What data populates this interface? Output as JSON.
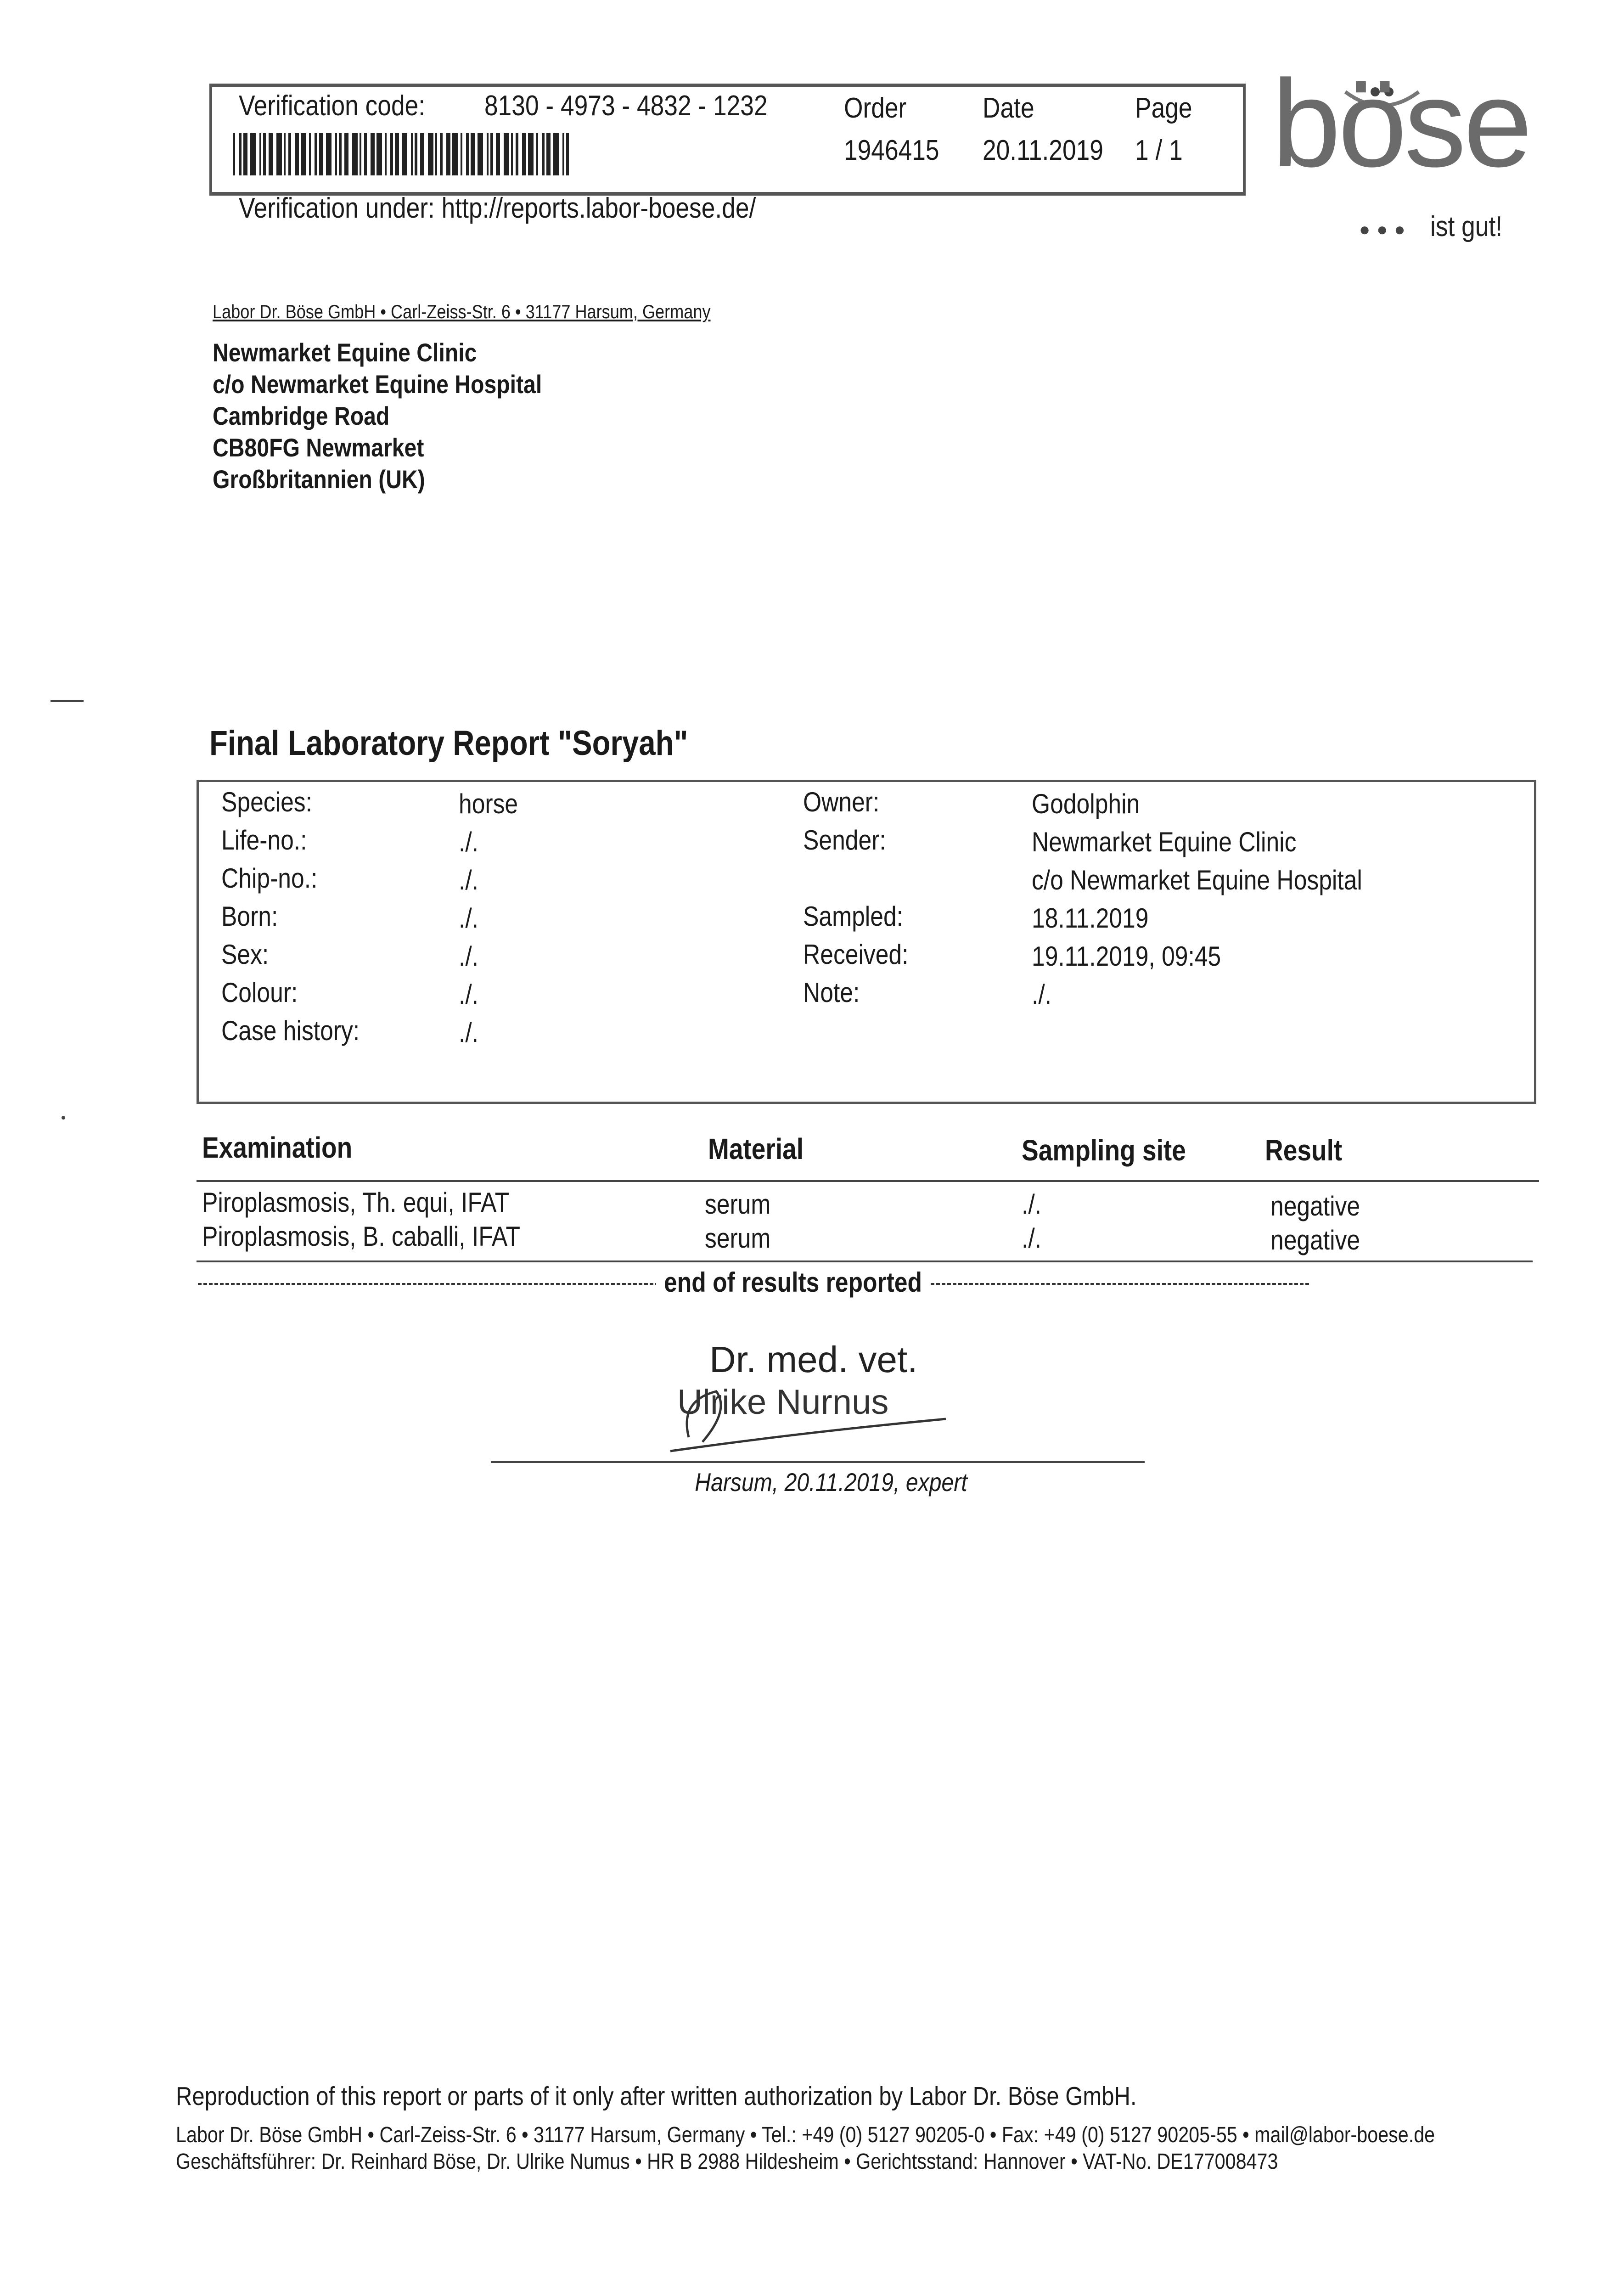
{
  "header": {
    "verification_label": "Verification code:",
    "verification_code": "8130 - 4973 - 4832 - 1232",
    "order_label": "Order",
    "order_value": "1946415",
    "date_label": "Date",
    "date_value": "20.11.2019",
    "page_label": "Page",
    "page_value": "1 / 1",
    "verification_url": "Verification under: http://reports.labor-boese.de/"
  },
  "logo": {
    "text": "böse",
    "tagline": "ist gut!",
    "color": "#6b6b6b"
  },
  "sender_line": "Labor Dr. Böse GmbH • Carl-Zeiss-Str. 6 • 31177 Harsum, Germany",
  "recipient": [
    "Newmarket Equine Clinic",
    "c/o Newmarket Equine Hospital",
    "Cambridge Road",
    "CB80FG Newmarket",
    "Großbritannien (UK)"
  ],
  "title": "Final Laboratory Report \"Soryah\"",
  "patient_left": [
    {
      "label": "Species:",
      "value": "horse"
    },
    {
      "label": "Life-no.:",
      "value": "./."
    },
    {
      "label": "Chip-no.:",
      "value": "./."
    },
    {
      "label": "Born:",
      "value": "./."
    },
    {
      "label": "Sex:",
      "value": "./."
    },
    {
      "label": "Colour:",
      "value": "./."
    },
    {
      "label": "Case history:",
      "value": "./."
    }
  ],
  "patient_right": [
    {
      "label": "Owner:",
      "value": "Godolphin"
    },
    {
      "label": "Sender:",
      "value": "Newmarket Equine Clinic"
    },
    {
      "label": "",
      "value": "c/o Newmarket Equine Hospital"
    },
    {
      "label": "Sampled:",
      "value": "18.11.2019"
    },
    {
      "label": "Received:",
      "value": "19.11.2019, 09:45"
    },
    {
      "label": "Note:",
      "value": "./."
    }
  ],
  "results": {
    "headers": [
      "Examination",
      "Material",
      "Sampling site",
      "Result"
    ],
    "rows": [
      [
        "Piroplasmosis, Th. equi, IFAT",
        "serum",
        "./.",
        "negative"
      ],
      [
        "Piroplasmosis, B. caballi, IFAT",
        "serum",
        "./.",
        "negative"
      ]
    ],
    "end_text": "end of results reported"
  },
  "signature": {
    "line1": "Dr. med. vet.",
    "line2": "Ulrike Nurnus",
    "caption": "Harsum, 20.11.2019, expert"
  },
  "footer": {
    "notice": "Reproduction of this report or parts of it only after written authorization by Labor Dr. Böse GmbH.",
    "address": "Labor Dr. Böse GmbH • Carl-Zeiss-Str. 6 • 31177 Harsum, Germany • Tel.: +49 (0) 5127 90205-0 • Fax: +49 (0) 5127 90205-55 • mail@labor-boese.de",
    "management": "Geschäftsführer: Dr. Reinhard Böse, Dr. Ulrike Numus • HR B 2988 Hildesheim • Gerichtsstand: Hannover • VAT-No. DE177008473"
  }
}
